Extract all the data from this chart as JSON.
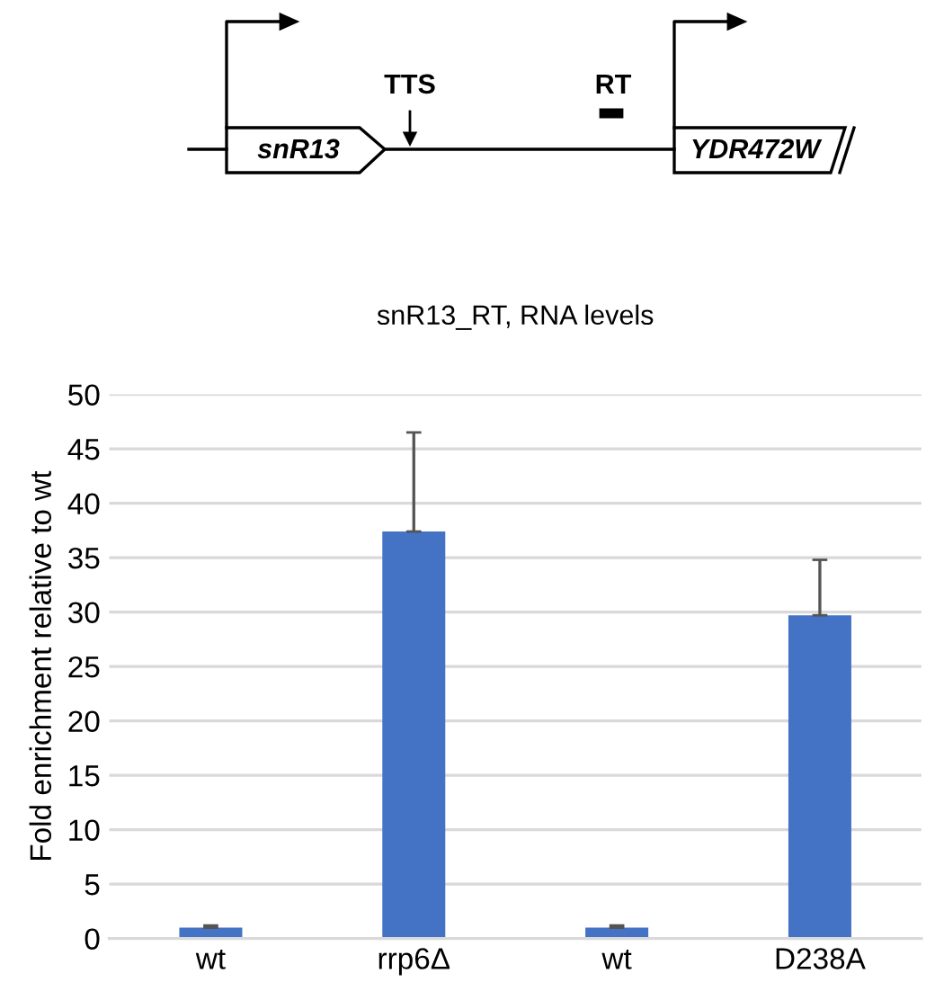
{
  "chart_data": {
    "type": "bar",
    "title": "snR13_RT, RNA levels",
    "ylabel": "Fold enrichment relative to wt",
    "categories": [
      "wt",
      "rrp6Δ",
      "wt",
      "D238A"
    ],
    "values": [
      1.0,
      37.4,
      1.0,
      29.7
    ],
    "errors": [
      0.2,
      9.1,
      0.2,
      5.1
    ],
    "color": "#4472c4",
    "ylim": [
      0,
      50
    ],
    "yticks": [
      0,
      5,
      10,
      15,
      20,
      25,
      30,
      35,
      40,
      45,
      50
    ],
    "grid": "y",
    "annotations": [
      "snR13",
      "TTS",
      "RT",
      "YDR472W"
    ]
  }
}
